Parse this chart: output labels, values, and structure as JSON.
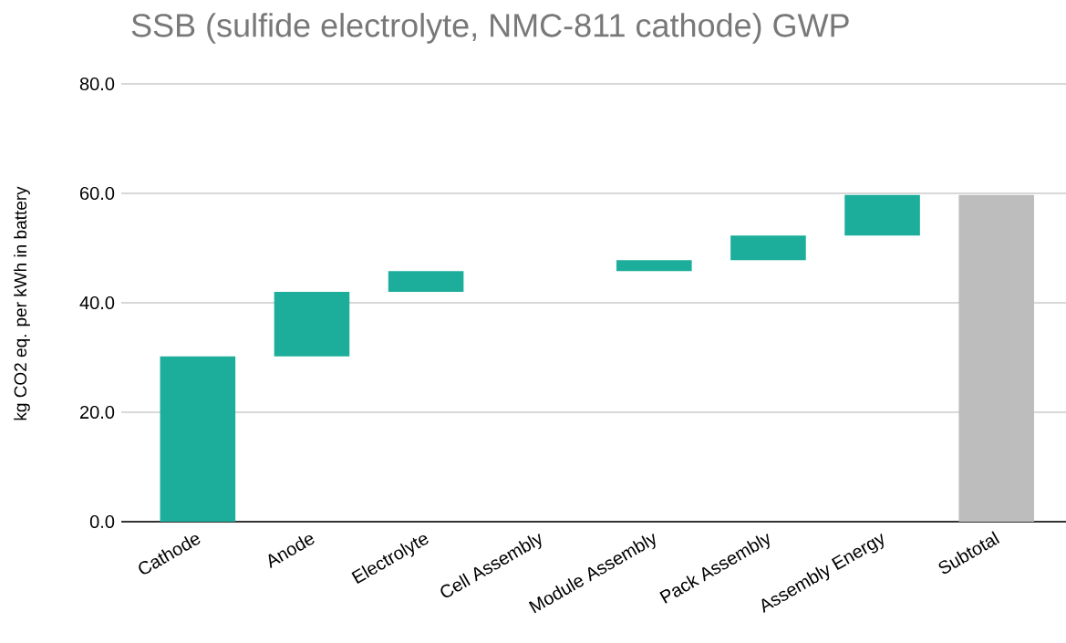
{
  "chart_data": {
    "type": "bar",
    "title": "SSB (sulfide electrolyte, NMC-811 cathode) GWP",
    "ylabel": "kg CO2 eq. per kWh in battery",
    "categories": [
      "Cathode",
      "Anode",
      "Electrolyte",
      "Cell Assembly",
      "Module Assembly",
      "Pack Assembly",
      "Assembly Energy",
      "Subtotal"
    ],
    "values": [
      30.2,
      11.8,
      3.8,
      0,
      2.0,
      4.5,
      7.4,
      59.7
    ],
    "base": [
      0,
      30.2,
      42.0,
      null,
      45.8,
      47.8,
      52.3,
      0
    ],
    "colors": [
      "#1cae9a",
      "#1cae9a",
      "#1cae9a",
      "#1cae9a",
      "#1cae9a",
      "#1cae9a",
      "#1cae9a",
      "#bdbdbd"
    ],
    "ylim": [
      0,
      80
    ],
    "yticks": [
      {
        "value": 0,
        "label": "0.0"
      },
      {
        "value": 20,
        "label": "20.0"
      },
      {
        "value": 40,
        "label": "40.0"
      },
      {
        "value": 60,
        "label": "60.0"
      },
      {
        "value": 80,
        "label": "80.0"
      }
    ],
    "grid": "y"
  }
}
